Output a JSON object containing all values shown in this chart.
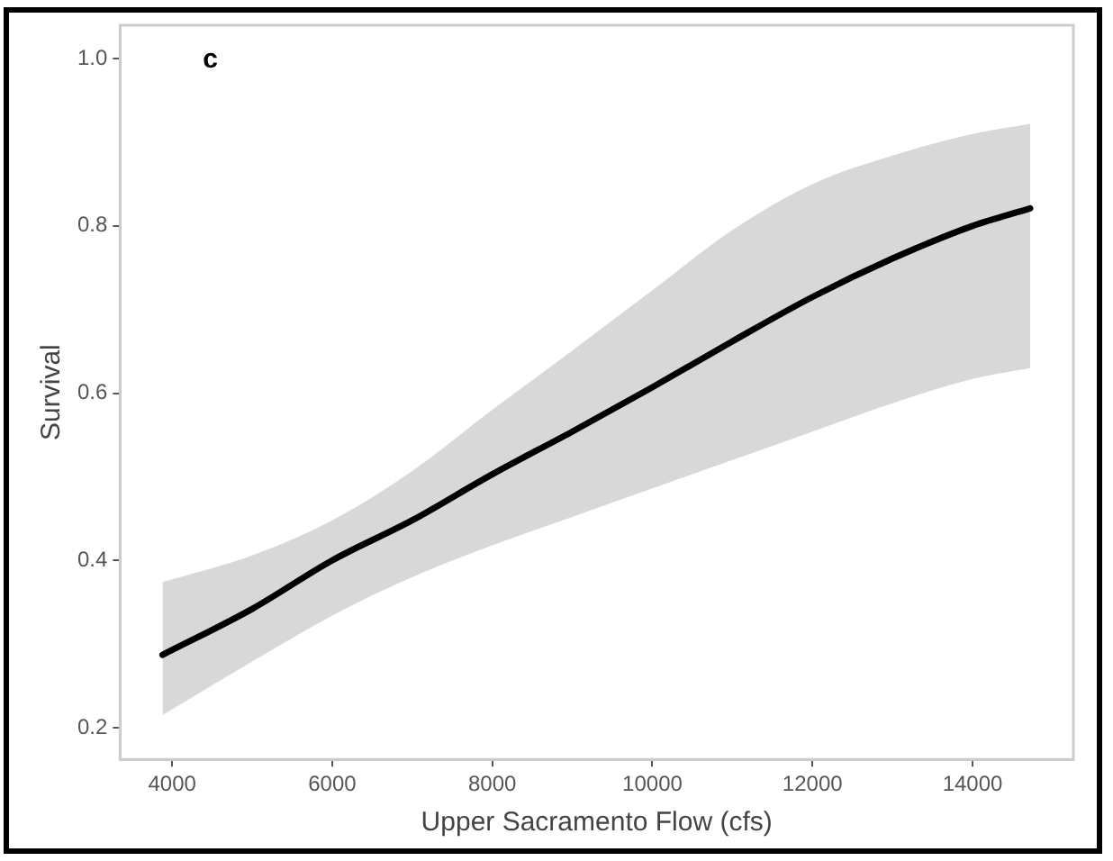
{
  "chart_data": {
    "type": "line",
    "xlabel": "Upper Sacramento Flow (cfs)",
    "ylabel": "Survival",
    "annotations": [
      "c"
    ],
    "x": [
      3880,
      5000,
      6000,
      7000,
      8000,
      9000,
      10000,
      11000,
      12000,
      13000,
      14000,
      14720
    ],
    "series": [
      {
        "color": "#000000",
        "values": [
          0.287,
          0.342,
          0.4,
          0.448,
          0.503,
          0.554,
          0.607,
          0.662,
          0.715,
          0.761,
          0.8,
          0.821
        ],
        "lower": [
          0.215,
          0.279,
          0.334,
          0.38,
          0.418,
          0.452,
          0.486,
          0.52,
          0.554,
          0.588,
          0.617,
          0.63
        ],
        "upper": [
          0.374,
          0.406,
          0.448,
          0.507,
          0.58,
          0.651,
          0.723,
          0.795,
          0.85,
          0.884,
          0.91,
          0.922
        ]
      }
    ],
    "xlim": [
      3350,
      15260
    ],
    "xticks": [
      4000,
      6000,
      8000,
      10000,
      12000,
      14000
    ],
    "ylim": [
      0.162,
      1.04
    ],
    "yticks": [
      0.2,
      0.4,
      0.6,
      0.8,
      {
        "value": 1,
        "label": "1.0"
      }
    ],
    "grid": false,
    "legend": false,
    "marker": "none",
    "line_style": "solid"
  }
}
